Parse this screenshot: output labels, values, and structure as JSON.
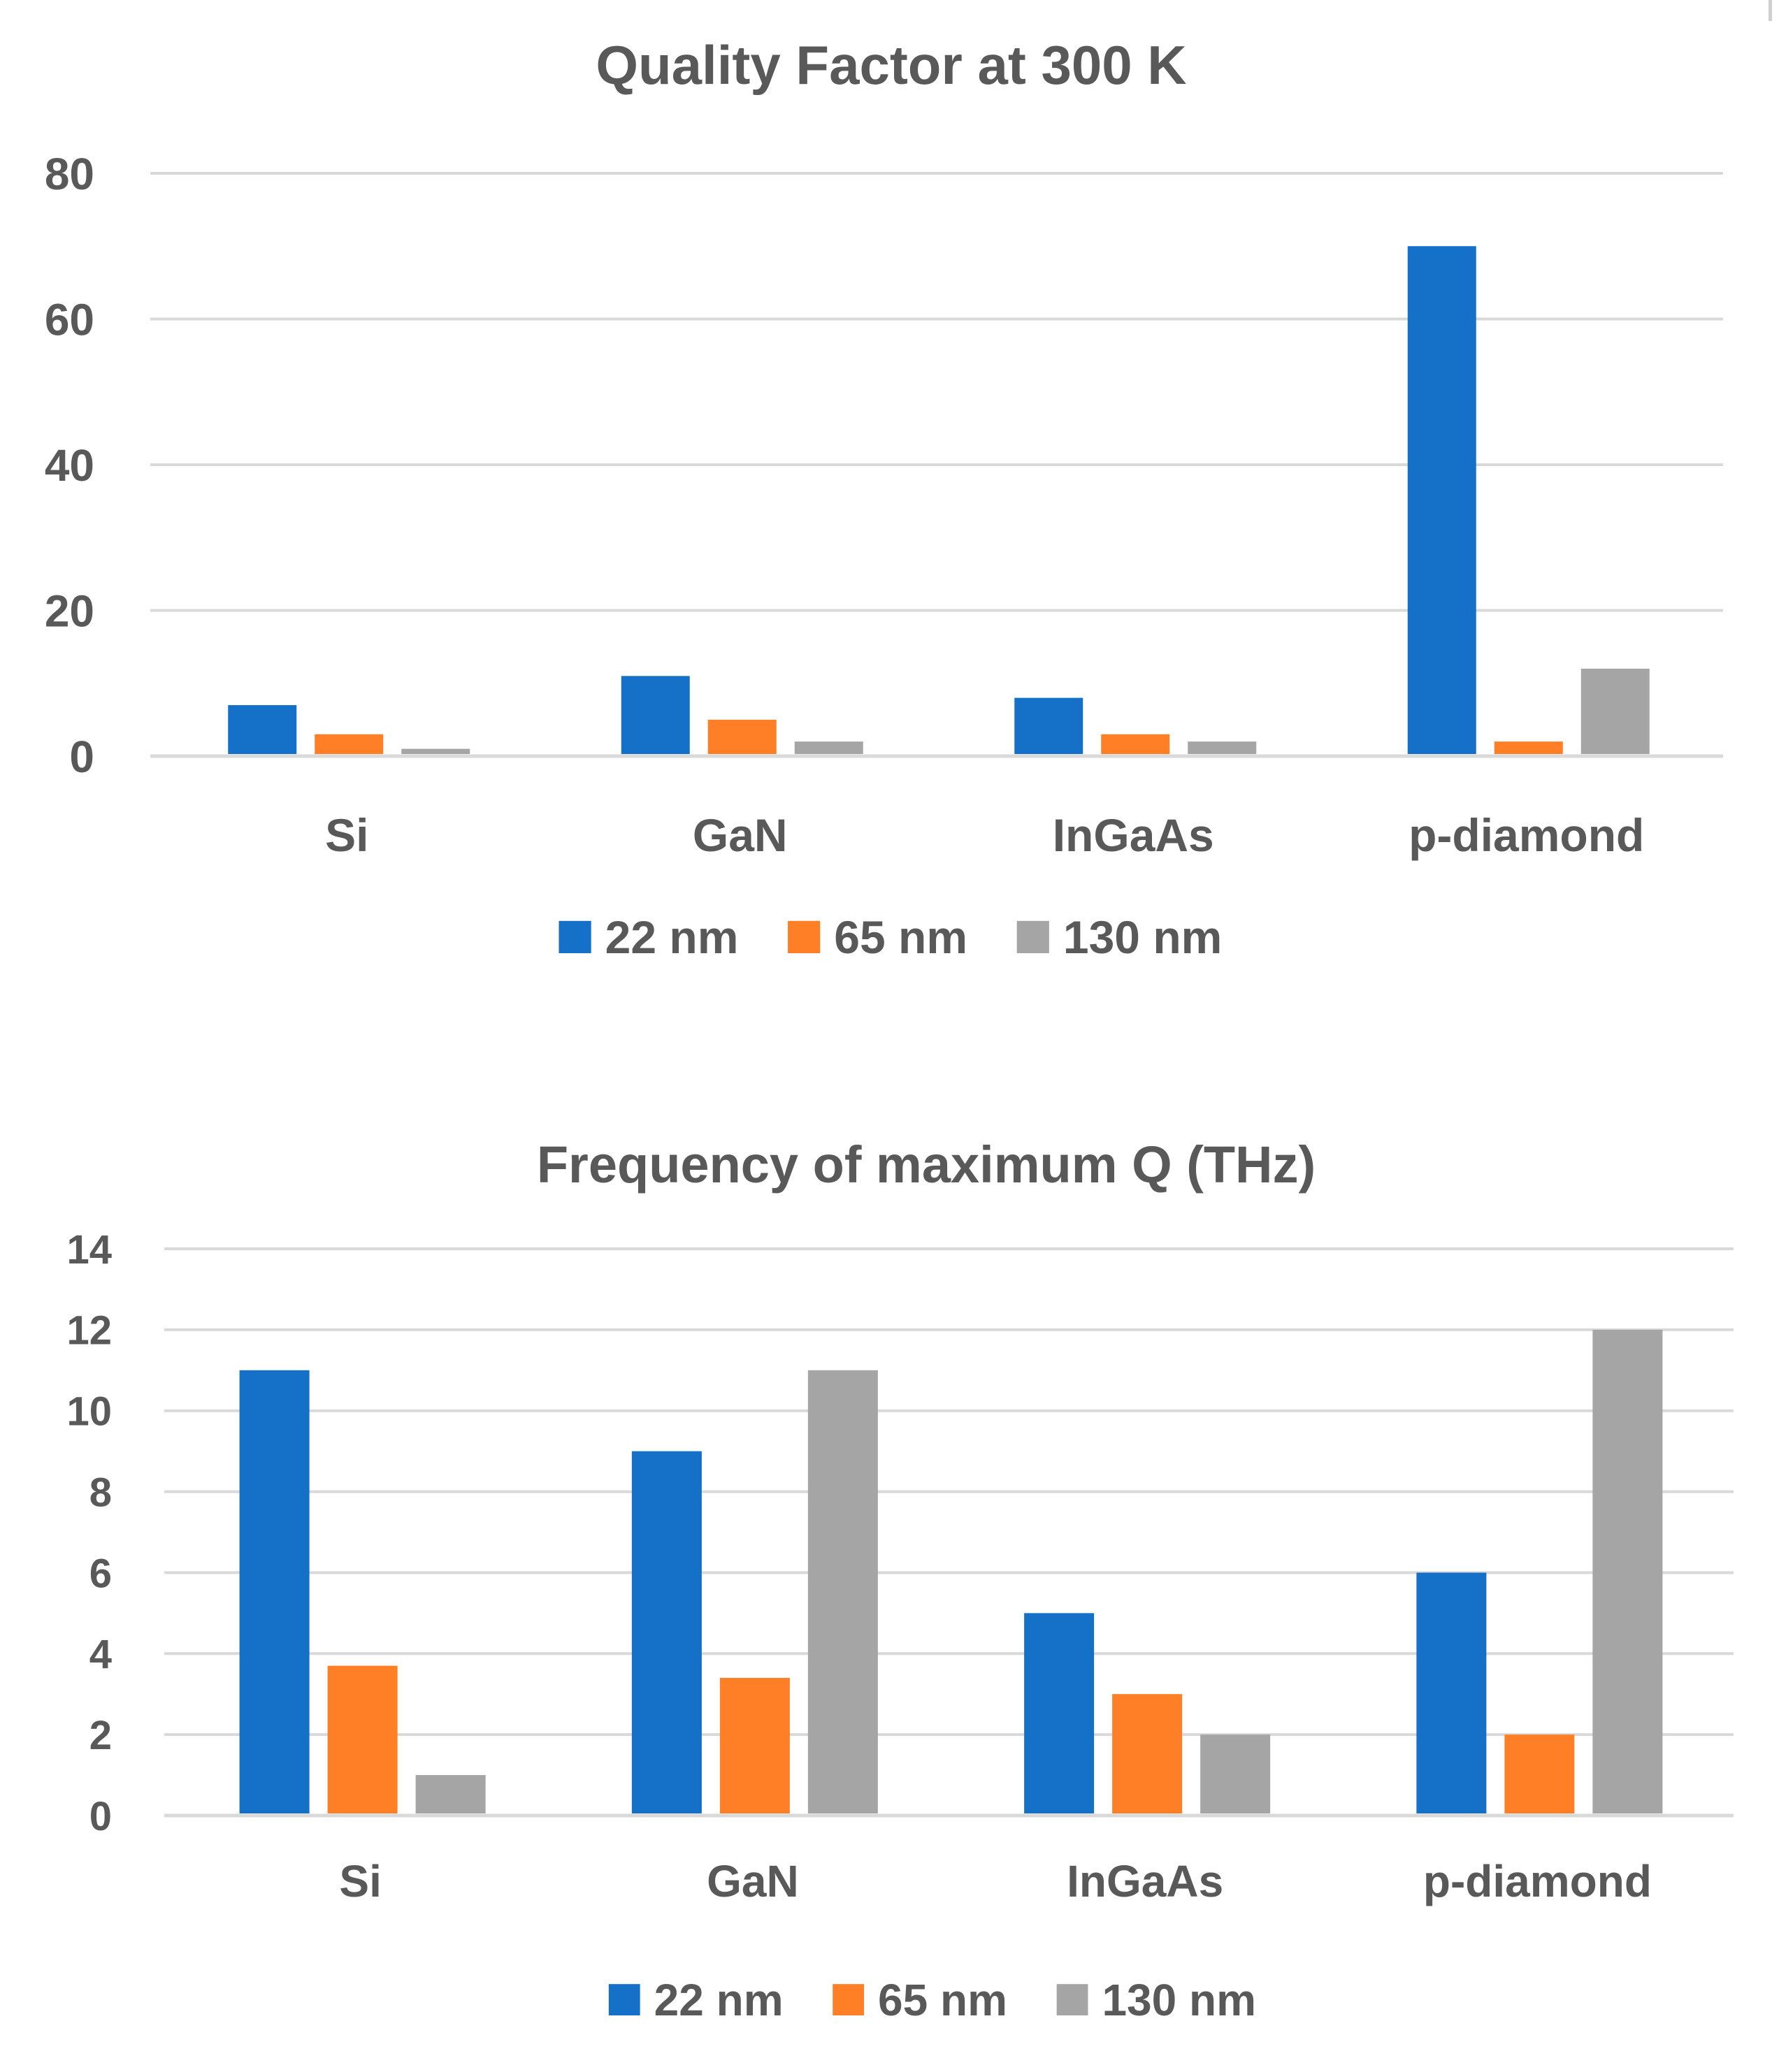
{
  "chart_data": [
    {
      "type": "bar",
      "title": "Quality Factor at 300 K",
      "xlabel": "",
      "ylabel": "",
      "categories": [
        "Si",
        "GaN",
        "InGaAs",
        "p-diamond"
      ],
      "series": [
        {
          "name": "22 nm",
          "values": [
            7,
            11,
            8,
            70
          ]
        },
        {
          "name": "65 nm",
          "values": [
            3,
            5,
            3,
            2
          ]
        },
        {
          "name": "130 nm",
          "values": [
            1,
            2,
            2,
            12
          ]
        }
      ],
      "ylim": [
        0,
        80
      ],
      "yticks": [
        "0",
        "20",
        "40",
        "60",
        "80"
      ],
      "grid": true,
      "legend": "bottom-center"
    },
    {
      "type": "bar",
      "title": "Frequency of maximum Q (THz)",
      "xlabel": "",
      "ylabel": "",
      "categories": [
        "Si",
        "GaN",
        "InGaAs",
        "p-diamond"
      ],
      "series": [
        {
          "name": "22 nm",
          "values": [
            11,
            9,
            5,
            6
          ]
        },
        {
          "name": "65 nm",
          "values": [
            3.7,
            3.4,
            3,
            2
          ]
        },
        {
          "name": "130 nm",
          "values": [
            1,
            11,
            2,
            12
          ]
        }
      ],
      "ylim": [
        0,
        14
      ],
      "yticks": [
        "0",
        "2",
        "4",
        "6",
        "8",
        "10",
        "12",
        "14"
      ],
      "grid": true,
      "legend": "bottom-center"
    }
  ],
  "colors": {
    "series": [
      "#1570C8",
      "#FF7F27",
      "#A5A5A5"
    ],
    "grid": "#D9D9D9",
    "text": "#595959",
    "background": "#FFFFFF"
  }
}
